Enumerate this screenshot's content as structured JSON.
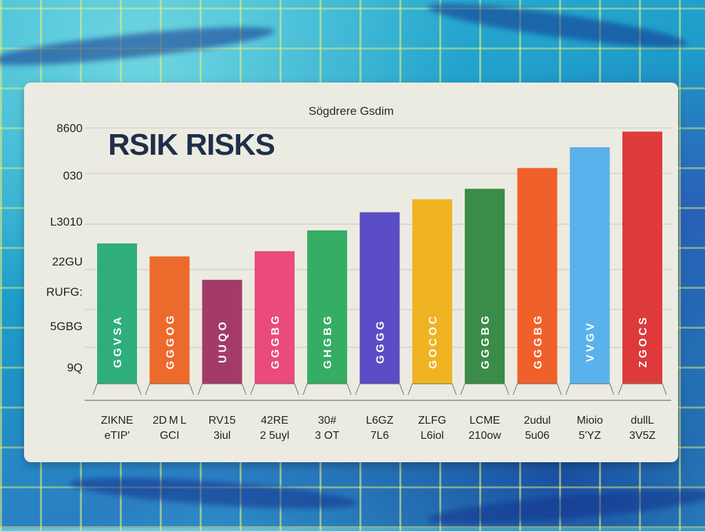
{
  "chart_data": {
    "type": "bar",
    "title": "RSIK RISKS",
    "subtitle": "Sögdrere Gsdim",
    "y_ticks": [
      "8600",
      "030",
      "L3010",
      "22GU",
      "RUFG:",
      "5GBG",
      "9Q"
    ],
    "categories": [
      [
        "ZIKNE",
        "eTIP'"
      ],
      [
        "2D M L",
        "GCI"
      ],
      [
        "RV15",
        "3iul"
      ],
      [
        "42RE",
        "2 5uyl"
      ],
      [
        "30#",
        "3 OT"
      ],
      [
        "L6GZ",
        "7L6"
      ],
      [
        "ZLFG",
        "L6iol"
      ],
      [
        "LCME",
        "210ow"
      ],
      [
        "2udul",
        "5u06"
      ],
      [
        "Mioio",
        "5'YZ"
      ],
      [
        "dullL",
        "3V5Z"
      ]
    ],
    "inner_labels": [
      "GGVSA",
      "GGGOG",
      "UUQO",
      "GGGBG",
      "GHGBG",
      "GGGG",
      "GOCOC",
      "GGGBG",
      "GGGBG",
      "VVGV",
      "ZGOCS"
    ],
    "values": [
      0.54,
      0.49,
      0.4,
      0.51,
      0.59,
      0.66,
      0.71,
      0.75,
      0.83,
      0.91,
      0.97
    ],
    "ylim": [
      0,
      1
    ],
    "grid": true,
    "colors": [
      "#2fae7c",
      "#ec6a2c",
      "#a33b66",
      "#ea4a7c",
      "#35ad64",
      "#5a4cc4",
      "#f0b322",
      "#3a8c48",
      "#f0602a",
      "#5ab2ec",
      "#de3a3c"
    ]
  }
}
